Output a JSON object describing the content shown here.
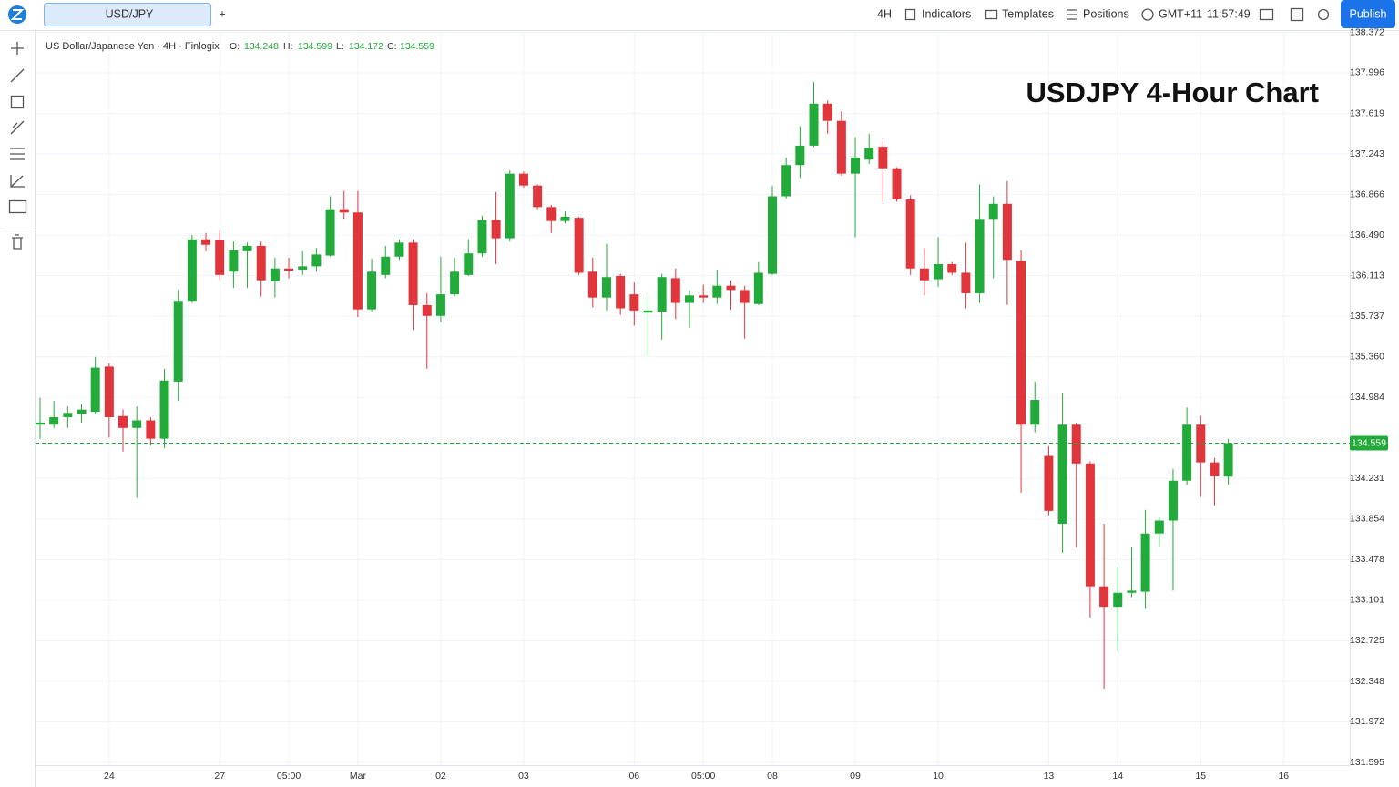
{
  "ui": {
    "tab": "USD/JPY",
    "add_tab": "+",
    "interval": "4H",
    "indicators": "Indicators",
    "templates": "Templates",
    "positions": "Positions",
    "timezone": "GMT+11",
    "clock": "11:57:49",
    "publish": "Publish"
  },
  "chart_data": {
    "type": "candlestick",
    "title": "USDJPY 4-Hour Chart",
    "symbol_label": "US Dollar/Japanese Yen · 4H · Finlogix",
    "ohlc_keys": [
      "O:",
      "H:",
      "L:",
      "C:"
    ],
    "up_color": "#22ab3a",
    "down_color": "#e0353b",
    "grid": true,
    "ylim": [
      131.57,
      138.393
    ],
    "yticks": [
      138.372,
      137.996,
      137.619,
      137.243,
      136.866,
      {
        "value": 136.49,
        "label": "136.490"
      },
      136.113,
      135.737,
      {
        "value": 135.36,
        "label": "135.360"
      },
      134.984,
      134.231,
      133.854,
      133.478,
      133.101,
      132.725,
      132.348,
      131.972,
      131.595
    ],
    "categories": [
      null,
      null,
      null,
      null,
      null,
      "24",
      null,
      null,
      null,
      null,
      null,
      null,
      null,
      "27",
      null,
      null,
      null,
      null,
      "05:00",
      null,
      null,
      null,
      null,
      "Mar",
      null,
      null,
      null,
      null,
      null,
      "02",
      null,
      null,
      null,
      null,
      null,
      "03",
      null,
      null,
      null,
      null,
      null,
      null,
      null,
      "06",
      null,
      null,
      null,
      null,
      "05:00",
      null,
      null,
      null,
      null,
      "08",
      null,
      null,
      null,
      null,
      null,
      "09",
      null,
      null,
      null,
      null,
      null,
      "10",
      null,
      null,
      null,
      null,
      null,
      null,
      null,
      "13",
      null,
      null,
      null,
      null,
      "14",
      null,
      null,
      null,
      null,
      null,
      "15",
      null,
      null,
      null,
      null,
      null,
      "16"
    ],
    "open": [
      134.73,
      134.73,
      134.8,
      134.83,
      134.85,
      135.27,
      134.81,
      134.7,
      134.77,
      134.6,
      135.13,
      135.88,
      136.45,
      136.44,
      136.15,
      136.34,
      136.39,
      136.06,
      136.18,
      136.17,
      136.2,
      136.3,
      136.73,
      136.7,
      135.8,
      136.12,
      136.29,
      136.42,
      135.84,
      135.74,
      135.94,
      136.12,
      136.32,
      136.63,
      136.46,
      137.06,
      136.95,
      136.75,
      136.62,
      136.65,
      136.15,
      135.91,
      136.11,
      135.94,
      135.77,
      135.78,
      136.09,
      135.86,
      135.93,
      135.91,
      136.02,
      135.98,
      135.85,
      136.13,
      136.85,
      137.14,
      137.32,
      137.71,
      137.55,
      137.06,
      137.19,
      137.31,
      137.11,
      136.82,
      136.18,
      136.08,
      136.22,
      136.14,
      135.95,
      136.64,
      136.78,
      136.25,
      134.73,
      134.44,
      133.81,
      134.73,
      134.37,
      133.23,
      133.04,
      133.17,
      133.18,
      133.72,
      133.84,
      134.21,
      134.73,
      134.38,
      134.248,
      null,
      null,
      null,
      null
    ],
    "high": [
      134.98,
      134.95,
      134.9,
      134.92,
      135.36,
      135.3,
      134.87,
      134.9,
      134.8,
      135.25,
      135.98,
      136.49,
      136.51,
      136.53,
      136.43,
      136.42,
      136.43,
      136.28,
      136.28,
      136.34,
      136.37,
      136.85,
      136.9,
      136.9,
      136.27,
      136.39,
      136.45,
      136.45,
      135.95,
      136.29,
      136.28,
      136.45,
      136.67,
      136.89,
      137.09,
      137.08,
      136.96,
      136.77,
      136.71,
      136.66,
      136.28,
      136.41,
      136.13,
      136.05,
      135.92,
      136.13,
      136.18,
      135.98,
      136.03,
      136.17,
      136.07,
      136.02,
      136.24,
      136.95,
      137.21,
      137.5,
      137.91,
      137.74,
      137.64,
      137.4,
      137.43,
      137.36,
      137.12,
      136.86,
      136.37,
      136.47,
      136.24,
      136.42,
      136.96,
      136.85,
      136.99,
      136.35,
      135.13,
      134.53,
      135.02,
      134.75,
      134.39,
      133.81,
      133.41,
      133.6,
      133.94,
      133.87,
      134.32,
      134.89,
      134.81,
      134.42,
      134.599,
      null,
      null,
      null,
      null
    ],
    "low": [
      134.6,
      134.7,
      134.7,
      134.75,
      134.83,
      134.61,
      134.48,
      134.05,
      134.54,
      134.51,
      134.95,
      135.86,
      136.34,
      136.08,
      136.0,
      136.0,
      135.92,
      135.91,
      136.09,
      136.12,
      136.15,
      136.29,
      136.64,
      135.73,
      135.78,
      136.09,
      136.26,
      135.61,
      135.25,
      135.68,
      135.92,
      136.11,
      136.29,
      136.22,
      136.43,
      136.93,
      136.73,
      136.51,
      136.6,
      136.12,
      135.82,
      135.79,
      135.75,
      135.65,
      135.36,
      135.52,
      135.71,
      135.63,
      135.86,
      135.85,
      135.8,
      135.53,
      135.84,
      136.12,
      136.83,
      137.02,
      137.31,
      137.43,
      137.04,
      136.47,
      137.15,
      136.8,
      136.8,
      136.12,
      135.93,
      136.01,
      136.12,
      135.81,
      135.86,
      136.09,
      135.84,
      134.1,
      134.66,
      133.89,
      133.54,
      133.59,
      132.94,
      132.28,
      132.63,
      133.13,
      133.02,
      133.6,
      133.19,
      134.17,
      134.06,
      133.98,
      134.172,
      null,
      null,
      null,
      null
    ],
    "close": [
      134.75,
      134.8,
      134.84,
      134.87,
      135.26,
      134.8,
      134.7,
      134.77,
      134.6,
      135.14,
      135.88,
      136.45,
      136.4,
      136.12,
      136.35,
      136.39,
      136.07,
      136.18,
      136.16,
      136.2,
      136.31,
      136.73,
      136.7,
      135.8,
      136.15,
      136.29,
      136.42,
      135.84,
      135.74,
      135.94,
      136.15,
      136.32,
      136.63,
      136.46,
      137.06,
      136.95,
      136.75,
      136.62,
      136.66,
      136.14,
      135.91,
      136.1,
      135.81,
      135.79,
      135.79,
      136.1,
      135.86,
      135.93,
      135.91,
      136.02,
      135.98,
      135.86,
      136.14,
      136.85,
      137.14,
      137.32,
      137.71,
      137.55,
      137.06,
      137.21,
      137.3,
      137.11,
      136.82,
      136.18,
      136.07,
      136.22,
      136.14,
      135.95,
      136.64,
      136.78,
      136.26,
      134.73,
      134.96,
      133.93,
      134.73,
      134.37,
      133.23,
      133.04,
      133.17,
      133.19,
      133.72,
      133.84,
      134.21,
      134.73,
      134.38,
      134.25,
      134.559,
      null,
      null,
      null,
      null
    ]
  }
}
